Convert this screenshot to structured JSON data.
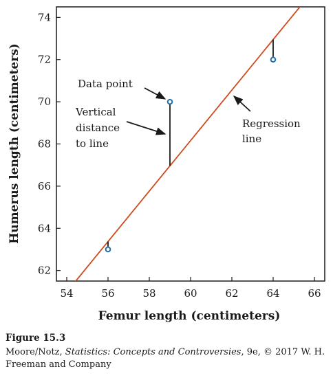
{
  "chart_data": {
    "type": "scatter",
    "xlabel": "Femur length (centimeters)",
    "ylabel": "Humerus length (centimeters)",
    "xlim": [
      53.5,
      66.5
    ],
    "ylim": [
      61.5,
      74.5
    ],
    "x_ticks": [
      54,
      56,
      58,
      60,
      62,
      64,
      66
    ],
    "y_ticks": [
      62,
      64,
      66,
      68,
      70,
      72,
      74
    ],
    "points": [
      {
        "x": 56,
        "y": 63
      },
      {
        "x": 59,
        "y": 70
      },
      {
        "x": 64,
        "y": 72
      }
    ],
    "regression_line": {
      "intercept": -3.66,
      "slope": 1.197
    },
    "annotations": {
      "data_point": "Data point",
      "vertical_distance": [
        "Vertical",
        "distance",
        "to line"
      ],
      "regression_line": [
        "Regression",
        "line"
      ]
    },
    "grid": false,
    "colors": {
      "line": "#cc4a1c",
      "point": "#1f6fb0",
      "text": "#1a1a1a"
    }
  },
  "caption": {
    "figure": "Figure 15.3",
    "credit_before": "Moore/Notz, ",
    "credit_title": "Statistics: Concepts and Controversies",
    "credit_after": ", 9e, © 2017 W. H. Freeman and Company"
  }
}
